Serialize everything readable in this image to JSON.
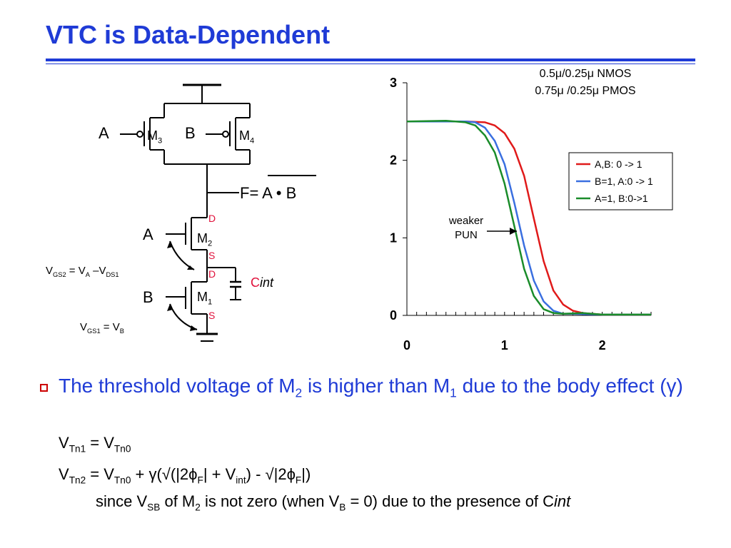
{
  "slide": {
    "title": "VTC is Data-Dependent"
  },
  "circuit": {
    "gate_a_top": "A",
    "gate_b_top": "B",
    "m3": "M",
    "m3_sub": "3",
    "m4": "M",
    "m4_sub": "4",
    "output": "F= A • B",
    "gate_a_bottom": "A",
    "gate_b_bottom": "B",
    "m2": "M",
    "m2_sub": "2",
    "m1": "M",
    "m1_sub": "1",
    "d2": "D",
    "s2": "S",
    "d1": "D",
    "s1": "S",
    "cint_c": "C",
    "cint_int": "int",
    "vgs2": "V",
    "vgs2_sub": "GS2",
    "vgs2_eq": " = V",
    "vgs2_a": "A",
    "vgs2_minus": " –V",
    "vgs2_ds1": "DS1",
    "vgs1": "V",
    "vgs1_sub": "GS1",
    "vgs1_eq": " = V",
    "vgs1_b": "B",
    "colors": {
      "label_red": "#e0103a"
    }
  },
  "chart_data": {
    "type": "line",
    "note_line1": "0.5μ/0.25μ NMOS",
    "note_line2": "0.75μ /0.25μ PMOS",
    "annotation_line1": "weaker",
    "annotation_line2": "PUN",
    "xlim": [
      0,
      2.5
    ],
    "ylim": [
      0,
      3
    ],
    "x_ticks": [
      "0",
      "1",
      "2"
    ],
    "y_ticks": [
      "0",
      "1",
      "2",
      "3"
    ],
    "legend_position": "right",
    "series": [
      {
        "name": "A,B: 0 -> 1",
        "color": "#e01a1a",
        "x": [
          0,
          0.4,
          0.6,
          0.8,
          0.9,
          1.0,
          1.1,
          1.2,
          1.3,
          1.4,
          1.5,
          1.6,
          1.7,
          1.8,
          2.0,
          2.2,
          2.5
        ],
        "y": [
          2.5,
          2.5,
          2.5,
          2.49,
          2.45,
          2.35,
          2.15,
          1.8,
          1.25,
          0.7,
          0.32,
          0.14,
          0.06,
          0.03,
          0.01,
          0.01,
          0.01
        ]
      },
      {
        "name": "B=1, A:0 -> 1",
        "color": "#3a6fe0",
        "x": [
          0,
          0.4,
          0.6,
          0.7,
          0.8,
          0.9,
          1.0,
          1.1,
          1.2,
          1.3,
          1.4,
          1.5,
          1.6,
          1.7,
          2.0,
          2.5
        ],
        "y": [
          2.5,
          2.5,
          2.5,
          2.49,
          2.42,
          2.25,
          1.95,
          1.45,
          0.9,
          0.45,
          0.18,
          0.06,
          0.02,
          0.02,
          0.01,
          0.01
        ]
      },
      {
        "name": "A=1, B:0->1",
        "color": "#1a8c2a",
        "x": [
          0,
          0.4,
          0.6,
          0.7,
          0.8,
          0.9,
          1.0,
          1.1,
          1.2,
          1.3,
          1.4,
          1.5,
          1.6,
          1.8,
          2.0,
          2.5
        ],
        "y": [
          2.5,
          2.51,
          2.49,
          2.45,
          2.32,
          2.1,
          1.7,
          1.15,
          0.6,
          0.25,
          0.08,
          0.03,
          0.02,
          0.03,
          0.01,
          0.01
        ]
      }
    ]
  },
  "body": {
    "bullet_pre": "The threshold voltage of M",
    "bullet_sub2": "2",
    "bullet_mid": " is higher than M",
    "bullet_sub1": "1",
    "bullet_post": " due to the body effect (γ)",
    "eq1_a": "V",
    "eq1_a_sub": "Tn1",
    "eq1_b": " = V",
    "eq1_b_sub": "Tn0",
    "eq2_a": "V",
    "eq2_a_sub": "Tn2",
    "eq2_b": " = V",
    "eq2_b_sub": "Tn0",
    "eq2_c": " + γ(√(|2ϕ",
    "eq2_c_sub": "F",
    "eq2_d": "| + V",
    "eq2_d_sub": "int",
    "eq2_e": ") - √|2ϕ",
    "eq2_e_sub": "F",
    "eq2_f": "|)",
    "since_a": "since V",
    "since_a_sub": "SB",
    "since_b": " of M",
    "since_b_sub": "2",
    "since_c": " is not zero (when V",
    "since_c_sub": "B",
    "since_d": " = 0) due to the presence of C",
    "since_int": "int"
  }
}
